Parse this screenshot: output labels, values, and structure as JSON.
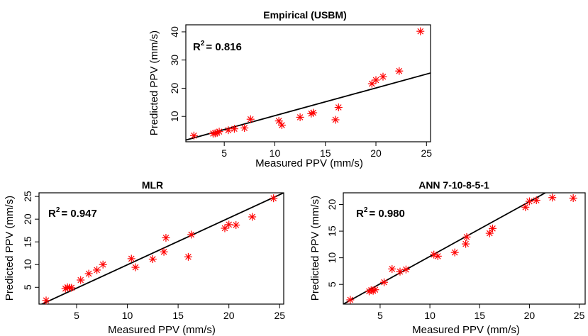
{
  "chart_data": [
    {
      "type": "scatter",
      "title": "Empirical (USBM)",
      "xlabel": "Measured PPV (mm/s)",
      "ylabel": "Predicted PPV (mm/s)",
      "r2": {
        "prefix": "R",
        "sup": "2",
        "value": "= 0.816"
      },
      "xlim": [
        1.2,
        25.4
      ],
      "ylim": [
        1.0,
        42.5
      ],
      "xticks": [
        5,
        10,
        15,
        20,
        25
      ],
      "yticks": [
        10,
        20,
        30,
        40
      ],
      "fit_line": {
        "x": [
          1.2,
          25.4
        ],
        "y": [
          1.6,
          25.4
        ]
      },
      "marker_color": "#ff0000",
      "line_color": "#000000",
      "points": [
        {
          "x": 2.0,
          "y": 3.2
        },
        {
          "x": 3.9,
          "y": 3.9
        },
        {
          "x": 4.1,
          "y": 4.0
        },
        {
          "x": 4.3,
          "y": 4.2
        },
        {
          "x": 4.5,
          "y": 4.6
        },
        {
          "x": 5.4,
          "y": 5.1
        },
        {
          "x": 6.0,
          "y": 5.6
        },
        {
          "x": 7.0,
          "y": 5.9
        },
        {
          "x": 7.6,
          "y": 9.0
        },
        {
          "x": 10.4,
          "y": 8.4
        },
        {
          "x": 10.7,
          "y": 6.9
        },
        {
          "x": 12.5,
          "y": 9.7
        },
        {
          "x": 13.6,
          "y": 11.0
        },
        {
          "x": 13.8,
          "y": 11.3
        },
        {
          "x": 16.0,
          "y": 8.8
        },
        {
          "x": 16.3,
          "y": 13.2
        },
        {
          "x": 19.6,
          "y": 21.6
        },
        {
          "x": 20.0,
          "y": 22.9
        },
        {
          "x": 20.7,
          "y": 24.1
        },
        {
          "x": 22.3,
          "y": 26.1
        },
        {
          "x": 24.4,
          "y": 40.2
        }
      ]
    },
    {
      "type": "scatter",
      "title": "MLR",
      "xlabel": "Measured PPV (mm/s)",
      "ylabel": "Predicted PPV (mm/s)",
      "r2": {
        "prefix": "R",
        "sup": "2",
        "value": "= 0.947"
      },
      "xlim": [
        1.3,
        25.4
      ],
      "ylim": [
        1.3,
        25.8
      ],
      "xticks": [
        5,
        10,
        15,
        20,
        25
      ],
      "yticks": [
        5,
        10,
        15,
        20,
        25
      ],
      "fit_line": {
        "x": [
          1.3,
          25.4
        ],
        "y": [
          1.0,
          25.8
        ]
      },
      "marker_color": "#ff0000",
      "line_color": "#000000",
      "points": [
        {
          "x": 2.0,
          "y": 2.1
        },
        {
          "x": 3.9,
          "y": 4.7
        },
        {
          "x": 4.1,
          "y": 5.0
        },
        {
          "x": 4.3,
          "y": 4.9
        },
        {
          "x": 4.5,
          "y": 4.9
        },
        {
          "x": 5.4,
          "y": 6.6
        },
        {
          "x": 6.2,
          "y": 8.0
        },
        {
          "x": 7.0,
          "y": 8.8
        },
        {
          "x": 7.6,
          "y": 10.0
        },
        {
          "x": 10.4,
          "y": 11.3
        },
        {
          "x": 10.8,
          "y": 9.4
        },
        {
          "x": 12.5,
          "y": 11.2
        },
        {
          "x": 13.6,
          "y": 12.8
        },
        {
          "x": 13.8,
          "y": 15.9
        },
        {
          "x": 16.0,
          "y": 11.7
        },
        {
          "x": 16.3,
          "y": 16.6
        },
        {
          "x": 19.6,
          "y": 18.0
        },
        {
          "x": 20.0,
          "y": 18.8
        },
        {
          "x": 20.7,
          "y": 18.7
        },
        {
          "x": 22.3,
          "y": 20.5
        },
        {
          "x": 24.4,
          "y": 24.6
        }
      ]
    },
    {
      "type": "scatter",
      "title": "ANN 7-10-8-5-1",
      "xlabel": "Measured PPV (mm/s)",
      "ylabel": "Predicted PPV (mm/s)",
      "r2": {
        "prefix": "R",
        "sup": "2",
        "value": "= 0.980"
      },
      "xlim": [
        1.3,
        25.6
      ],
      "ylim": [
        1.3,
        22.2
      ],
      "xticks": [
        5,
        10,
        15,
        20,
        25
      ],
      "yticks": [
        5,
        10,
        15,
        20
      ],
      "fit_line": {
        "x": [
          1.3,
          21.6
        ],
        "y": [
          1.3,
          22.2
        ]
      },
      "marker_color": "#ff0000",
      "line_color": "#000000",
      "points": [
        {
          "x": 2.0,
          "y": 2.1
        },
        {
          "x": 3.9,
          "y": 3.7
        },
        {
          "x": 4.1,
          "y": 3.9
        },
        {
          "x": 4.3,
          "y": 3.8
        },
        {
          "x": 4.5,
          "y": 4.0
        },
        {
          "x": 5.4,
          "y": 5.4
        },
        {
          "x": 6.2,
          "y": 7.9
        },
        {
          "x": 7.0,
          "y": 7.4
        },
        {
          "x": 7.6,
          "y": 7.8
        },
        {
          "x": 10.4,
          "y": 10.6
        },
        {
          "x": 10.8,
          "y": 10.3
        },
        {
          "x": 12.5,
          "y": 11.0
        },
        {
          "x": 13.6,
          "y": 12.6
        },
        {
          "x": 13.7,
          "y": 13.9
        },
        {
          "x": 16.0,
          "y": 14.6
        },
        {
          "x": 16.3,
          "y": 15.5
        },
        {
          "x": 19.6,
          "y": 19.5
        },
        {
          "x": 20.0,
          "y": 20.6
        },
        {
          "x": 20.7,
          "y": 20.8
        },
        {
          "x": 22.3,
          "y": 21.3
        },
        {
          "x": 24.4,
          "y": 21.2
        }
      ]
    }
  ]
}
